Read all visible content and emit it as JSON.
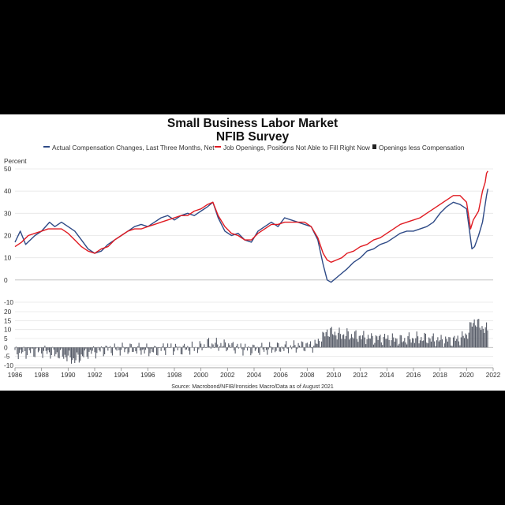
{
  "chart_data": {
    "type": "line",
    "title": "Small Business Labor Market",
    "subtitle": "NFIB Survey",
    "ylabel": "Percent",
    "source": "Source: Macrobond/NFIB/Ironsides Macro/Data as of August 2021",
    "legend": [
      {
        "name": "Actual Compensation Changes, Last Three Months, Net",
        "color": "#2e4a86"
      },
      {
        "name": "Job Openings, Positions Not Able to Fill Right Now",
        "color": "#e01b22"
      },
      {
        "name": "Openings less Compensation",
        "color": "#222222"
      }
    ],
    "top_panel": {
      "ylim": [
        -10,
        50
      ],
      "y_ticks": [
        "50",
        "40",
        "30",
        "20",
        "10",
        "0",
        "-10"
      ],
      "series": [
        {
          "name": "Actual Compensation Changes, Last Three Months, Net",
          "color": "#2e4a86",
          "points": [
            [
              1986.0,
              17
            ],
            [
              1986.4,
              22
            ],
            [
              1986.8,
              16
            ],
            [
              1987.5,
              20
            ],
            [
              1988.0,
              22
            ],
            [
              1988.6,
              26
            ],
            [
              1989.0,
              24
            ],
            [
              1989.5,
              26
            ],
            [
              1990.0,
              24
            ],
            [
              1990.5,
              22
            ],
            [
              1991.0,
              18
            ],
            [
              1991.5,
              14
            ],
            [
              1992.0,
              12
            ],
            [
              1992.5,
              13
            ],
            [
              1993.0,
              16
            ],
            [
              1993.5,
              18
            ],
            [
              1994.0,
              20
            ],
            [
              1994.5,
              22
            ],
            [
              1995.0,
              24
            ],
            [
              1995.5,
              25
            ],
            [
              1996.0,
              24
            ],
            [
              1996.5,
              26
            ],
            [
              1997.0,
              28
            ],
            [
              1997.5,
              29
            ],
            [
              1998.0,
              27
            ],
            [
              1998.5,
              29
            ],
            [
              1999.0,
              30
            ],
            [
              1999.5,
              29
            ],
            [
              2000.0,
              31
            ],
            [
              2000.5,
              33
            ],
            [
              2000.9,
              35
            ],
            [
              2001.3,
              28
            ],
            [
              2001.8,
              22
            ],
            [
              2002.3,
              20
            ],
            [
              2002.8,
              21
            ],
            [
              2003.3,
              18
            ],
            [
              2003.8,
              17
            ],
            [
              2004.3,
              22
            ],
            [
              2004.8,
              24
            ],
            [
              2005.3,
              26
            ],
            [
              2005.8,
              24
            ],
            [
              2006.3,
              28
            ],
            [
              2006.8,
              27
            ],
            [
              2007.3,
              26
            ],
            [
              2007.8,
              25
            ],
            [
              2008.3,
              24
            ],
            [
              2008.8,
              18
            ],
            [
              2009.2,
              7
            ],
            [
              2009.5,
              0
            ],
            [
              2009.8,
              -1
            ],
            [
              2010.2,
              1
            ],
            [
              2010.6,
              3
            ],
            [
              2011.0,
              5
            ],
            [
              2011.5,
              8
            ],
            [
              2012.0,
              10
            ],
            [
              2012.5,
              13
            ],
            [
              2013.0,
              14
            ],
            [
              2013.5,
              16
            ],
            [
              2014.0,
              17
            ],
            [
              2014.5,
              19
            ],
            [
              2015.0,
              21
            ],
            [
              2015.5,
              22
            ],
            [
              2016.0,
              22
            ],
            [
              2016.5,
              23
            ],
            [
              2017.0,
              24
            ],
            [
              2017.5,
              26
            ],
            [
              2018.0,
              30
            ],
            [
              2018.5,
              33
            ],
            [
              2019.0,
              35
            ],
            [
              2019.5,
              34
            ],
            [
              2020.0,
              32
            ],
            [
              2020.2,
              23
            ],
            [
              2020.4,
              14
            ],
            [
              2020.6,
              15
            ],
            [
              2020.9,
              20
            ],
            [
              2021.2,
              26
            ],
            [
              2021.5,
              38
            ],
            [
              2021.6,
              41
            ]
          ]
        },
        {
          "name": "Job Openings, Positions Not Able to Fill Right Now",
          "color": "#e01b22",
          "points": [
            [
              1986.0,
              15
            ],
            [
              1986.5,
              17
            ],
            [
              1987.0,
              20
            ],
            [
              1987.5,
              21
            ],
            [
              1988.0,
              22
            ],
            [
              1988.5,
              23
            ],
            [
              1989.0,
              23
            ],
            [
              1989.5,
              23
            ],
            [
              1990.0,
              21
            ],
            [
              1990.5,
              18
            ],
            [
              1991.0,
              15
            ],
            [
              1991.5,
              13
            ],
            [
              1992.0,
              12
            ],
            [
              1992.5,
              14
            ],
            [
              1993.0,
              15
            ],
            [
              1993.5,
              18
            ],
            [
              1994.0,
              20
            ],
            [
              1994.5,
              22
            ],
            [
              1995.0,
              23
            ],
            [
              1995.5,
              23
            ],
            [
              1996.0,
              24
            ],
            [
              1996.5,
              25
            ],
            [
              1997.0,
              26
            ],
            [
              1997.5,
              27
            ],
            [
              1998.0,
              28
            ],
            [
              1998.5,
              29
            ],
            [
              1999.0,
              29
            ],
            [
              1999.5,
              31
            ],
            [
              2000.0,
              32
            ],
            [
              2000.5,
              34
            ],
            [
              2000.9,
              35
            ],
            [
              2001.3,
              29
            ],
            [
              2001.8,
              24
            ],
            [
              2002.3,
              21
            ],
            [
              2002.8,
              20
            ],
            [
              2003.3,
              18
            ],
            [
              2003.8,
              18
            ],
            [
              2004.3,
              21
            ],
            [
              2004.8,
              23
            ],
            [
              2005.3,
              25
            ],
            [
              2005.8,
              25
            ],
            [
              2006.3,
              26
            ],
            [
              2006.8,
              26
            ],
            [
              2007.3,
              26
            ],
            [
              2007.8,
              26
            ],
            [
              2008.3,
              24
            ],
            [
              2008.8,
              19
            ],
            [
              2009.2,
              12
            ],
            [
              2009.5,
              9
            ],
            [
              2009.8,
              8
            ],
            [
              2010.2,
              9
            ],
            [
              2010.6,
              10
            ],
            [
              2011.0,
              12
            ],
            [
              2011.5,
              13
            ],
            [
              2012.0,
              15
            ],
            [
              2012.5,
              16
            ],
            [
              2013.0,
              18
            ],
            [
              2013.5,
              19
            ],
            [
              2014.0,
              21
            ],
            [
              2014.5,
              23
            ],
            [
              2015.0,
              25
            ],
            [
              2015.5,
              26
            ],
            [
              2016.0,
              27
            ],
            [
              2016.5,
              28
            ],
            [
              2017.0,
              30
            ],
            [
              2017.5,
              32
            ],
            [
              2018.0,
              34
            ],
            [
              2018.5,
              36
            ],
            [
              2019.0,
              38
            ],
            [
              2019.5,
              38
            ],
            [
              2020.0,
              35
            ],
            [
              2020.3,
              23
            ],
            [
              2020.5,
              27
            ],
            [
              2020.9,
              31
            ],
            [
              2021.2,
              40
            ],
            [
              2021.4,
              44
            ],
            [
              2021.5,
              48
            ],
            [
              2021.6,
              49
            ]
          ]
        }
      ]
    },
    "bottom_panel": {
      "ylim": [
        -10,
        20
      ],
      "y_ticks": [
        "20",
        "15",
        "10",
        "5",
        "0",
        "-5",
        "-10"
      ],
      "series": [
        {
          "name": "Openings less Compensation",
          "color": "#555555",
          "segments": [
            [
              1986.0,
              -3
            ],
            [
              1988.0,
              -2
            ],
            [
              1989.5,
              -4
            ],
            [
              1990.5,
              -7
            ],
            [
              1991.5,
              -3
            ],
            [
              1993.0,
              -1
            ],
            [
              1995.0,
              -1
            ],
            [
              1996.5,
              -2
            ],
            [
              1997.5,
              0
            ],
            [
              1998.5,
              -1
            ],
            [
              2000.0,
              0
            ],
            [
              2000.5,
              2
            ],
            [
              2002.0,
              1
            ],
            [
              2003.5,
              -1
            ],
            [
              2005.0,
              -1
            ],
            [
              2006.5,
              0
            ],
            [
              2007.5,
              1
            ],
            [
              2008.5,
              1
            ],
            [
              2009.0,
              4
            ],
            [
              2009.5,
              9
            ],
            [
              2010.0,
              8
            ],
            [
              2010.5,
              7
            ],
            [
              2011.0,
              7
            ],
            [
              2012.0,
              6
            ],
            [
              2013.0,
              5
            ],
            [
              2014.0,
              5
            ],
            [
              2015.0,
              4
            ],
            [
              2016.0,
              5
            ],
            [
              2017.0,
              5
            ],
            [
              2018.0,
              4
            ],
            [
              2019.0,
              4
            ],
            [
              2019.5,
              5
            ],
            [
              2020.0,
              7
            ],
            [
              2020.4,
              13
            ],
            [
              2020.6,
              15
            ],
            [
              2021.0,
              12
            ],
            [
              2021.5,
              10
            ],
            [
              2021.6,
              9
            ]
          ]
        }
      ]
    },
    "x_ticks": [
      "1986",
      "1988",
      "1990",
      "1992",
      "1994",
      "1996",
      "1998",
      "2000",
      "2002",
      "2004",
      "2006",
      "2008",
      "2010",
      "2012",
      "2014",
      "2016",
      "2018",
      "2020",
      "2022"
    ],
    "xlim": [
      1986,
      2022
    ]
  }
}
